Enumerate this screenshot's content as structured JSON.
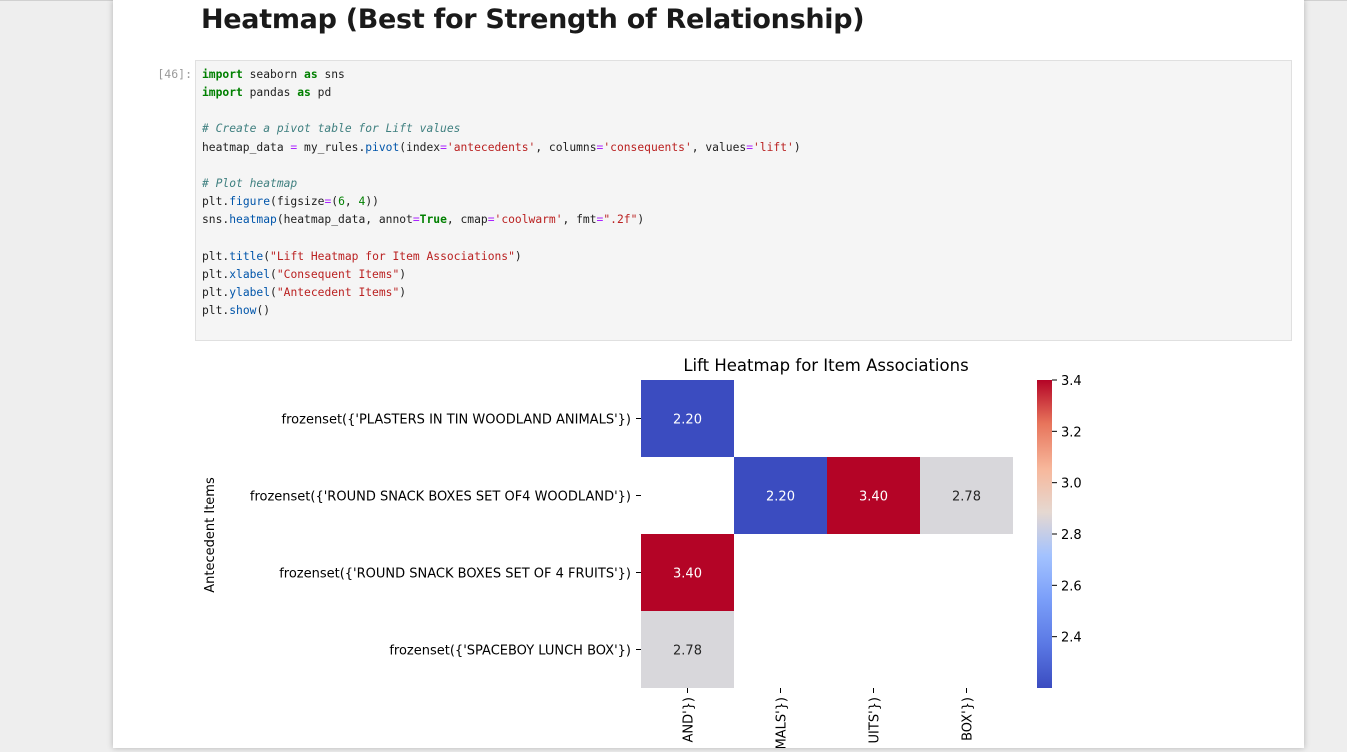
{
  "markdown": {
    "heading": "Heatmap (Best for Strength of Relationship)"
  },
  "cell": {
    "prompt": "[46]:",
    "code_lines": [
      [
        {
          "t": "import",
          "k": "kw"
        },
        {
          "t": " seaborn "
        },
        {
          "t": "as",
          "k": "kw"
        },
        {
          "t": " sns"
        }
      ],
      [
        {
          "t": "import",
          "k": "kw"
        },
        {
          "t": " pandas "
        },
        {
          "t": "as",
          "k": "kw"
        },
        {
          "t": " pd"
        }
      ],
      [],
      [
        {
          "t": "# Create a pivot table for Lift values",
          "k": "cm"
        }
      ],
      [
        {
          "t": "heatmap_data "
        },
        {
          "t": "=",
          "k": "op"
        },
        {
          "t": " my_rules."
        },
        {
          "t": "pivot",
          "k": "fn"
        },
        {
          "t": "(index"
        },
        {
          "t": "=",
          "k": "op"
        },
        {
          "t": "'antecedents'",
          "k": "str"
        },
        {
          "t": ", columns"
        },
        {
          "t": "=",
          "k": "op"
        },
        {
          "t": "'consequents'",
          "k": "str"
        },
        {
          "t": ", values"
        },
        {
          "t": "=",
          "k": "op"
        },
        {
          "t": "'lift'",
          "k": "str"
        },
        {
          "t": ")"
        }
      ],
      [],
      [
        {
          "t": "# Plot heatmap",
          "k": "cm"
        }
      ],
      [
        {
          "t": "plt."
        },
        {
          "t": "figure",
          "k": "fn"
        },
        {
          "t": "(figsize"
        },
        {
          "t": "=",
          "k": "op"
        },
        {
          "t": "("
        },
        {
          "t": "6",
          "k": "num"
        },
        {
          "t": ", "
        },
        {
          "t": "4",
          "k": "num"
        },
        {
          "t": "))"
        }
      ],
      [
        {
          "t": "sns."
        },
        {
          "t": "heatmap",
          "k": "fn"
        },
        {
          "t": "(heatmap_data, annot"
        },
        {
          "t": "=",
          "k": "op"
        },
        {
          "t": "True",
          "k": "kw"
        },
        {
          "t": ", cmap"
        },
        {
          "t": "=",
          "k": "op"
        },
        {
          "t": "'coolwarm'",
          "k": "str"
        },
        {
          "t": ", fmt"
        },
        {
          "t": "=",
          "k": "op"
        },
        {
          "t": "\".2f\"",
          "k": "str"
        },
        {
          "t": ")"
        }
      ],
      [],
      [
        {
          "t": "plt."
        },
        {
          "t": "title",
          "k": "fn"
        },
        {
          "t": "("
        },
        {
          "t": "\"Lift Heatmap for Item Associations\"",
          "k": "str"
        },
        {
          "t": ")"
        }
      ],
      [
        {
          "t": "plt."
        },
        {
          "t": "xlabel",
          "k": "fn"
        },
        {
          "t": "("
        },
        {
          "t": "\"Consequent Items\"",
          "k": "str"
        },
        {
          "t": ")"
        }
      ],
      [
        {
          "t": "plt."
        },
        {
          "t": "ylabel",
          "k": "fn"
        },
        {
          "t": "("
        },
        {
          "t": "\"Antecedent Items\"",
          "k": "str"
        },
        {
          "t": ")"
        }
      ],
      [
        {
          "t": "plt."
        },
        {
          "t": "show",
          "k": "fn"
        },
        {
          "t": "()"
        }
      ]
    ]
  },
  "chart_data": {
    "type": "heatmap",
    "title": "Lift Heatmap for Item Associations",
    "ylabel": "Antecedent Items",
    "rows": [
      "frozenset({'PLASTERS IN TIN WOODLAND ANIMALS'})",
      "frozenset({'ROUND SNACK BOXES SET OF4 WOODLAND'})",
      "frozenset({'ROUND SNACK BOXES SET OF 4 FRUITS'})",
      "frozenset({'SPACEBOY LUNCH BOX'})"
    ],
    "column_tick_labels": [
      "AND'})",
      "MALS'})",
      "UITS'})",
      "BOX'})"
    ],
    "values": [
      [
        2.2,
        null,
        null,
        null
      ],
      [
        null,
        2.2,
        3.4,
        2.78
      ],
      [
        3.4,
        null,
        null,
        null
      ],
      [
        2.78,
        null,
        null,
        null
      ]
    ],
    "annotations": [
      [
        "2.20",
        null,
        null,
        null
      ],
      [
        null,
        "2.20",
        "3.40",
        "2.78"
      ],
      [
        "3.40",
        null,
        null,
        null
      ],
      [
        "2.78",
        null,
        null,
        null
      ]
    ],
    "colormap": "coolwarm",
    "vmin": 2.2,
    "vmax": 3.4,
    "colorbar_ticks": [
      "3.4",
      "3.2",
      "3.0",
      "2.8",
      "2.6",
      "2.4"
    ],
    "colors": {
      "low": "#3b4cc0",
      "mid": "#dddcdc",
      "high": "#b40426"
    }
  }
}
